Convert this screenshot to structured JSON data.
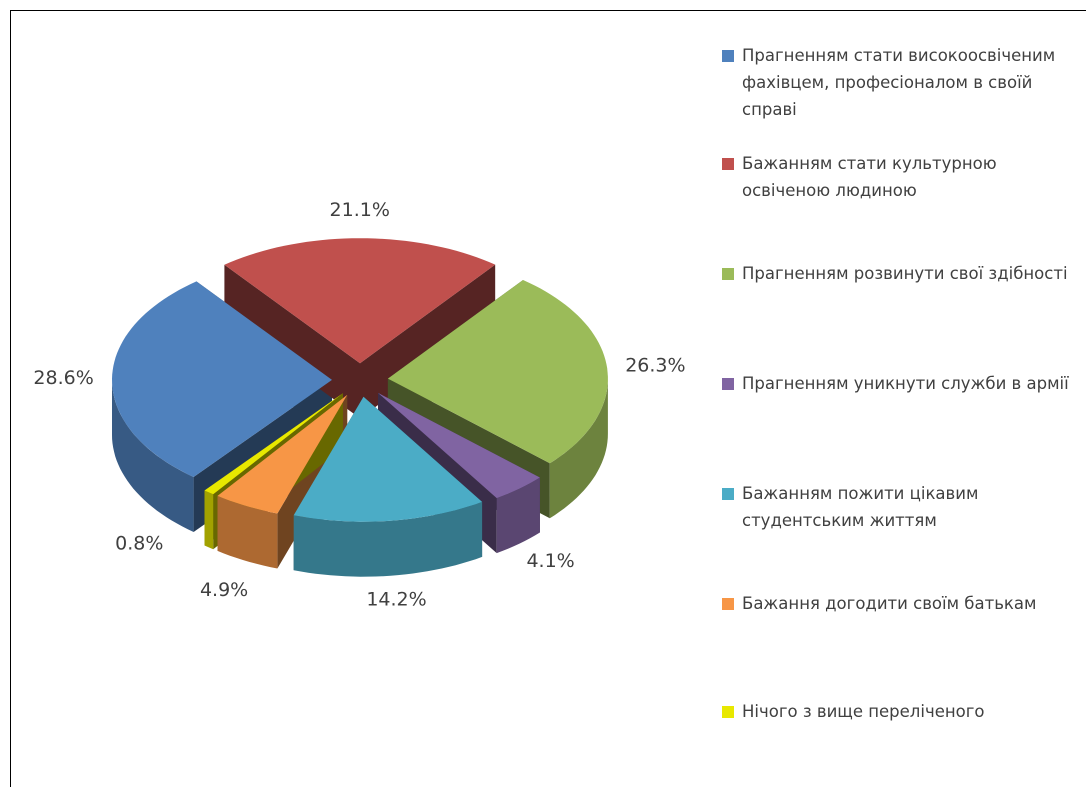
{
  "chart_data": {
    "type": "pie",
    "categories": [
      "Прагненням стати високоосвіченим фахівцем, професіоналом в своїй справі",
      "Бажанням стати культурною освіченою людиною",
      "Прагненням розвинути свої здібності",
      "Прагненням уникнути служби в армії",
      "Бажанням пожити цікавим студентським життям",
      "Бажання догодити своїм батькам",
      "Нічого з вище переліченого"
    ],
    "values": [
      28.6,
      21.1,
      26.3,
      4.1,
      14.2,
      4.9,
      0.8
    ],
    "value_labels": [
      "28.6%",
      "21.1%",
      "26.3%",
      "4.1%",
      "14.2%",
      "4.9%",
      "0.8%"
    ],
    "colors": [
      "#4f81bd",
      "#c0504d",
      "#9bbb59",
      "#8064a2",
      "#4bacc6",
      "#f79646",
      "#e8e800"
    ],
    "legend": "right"
  }
}
